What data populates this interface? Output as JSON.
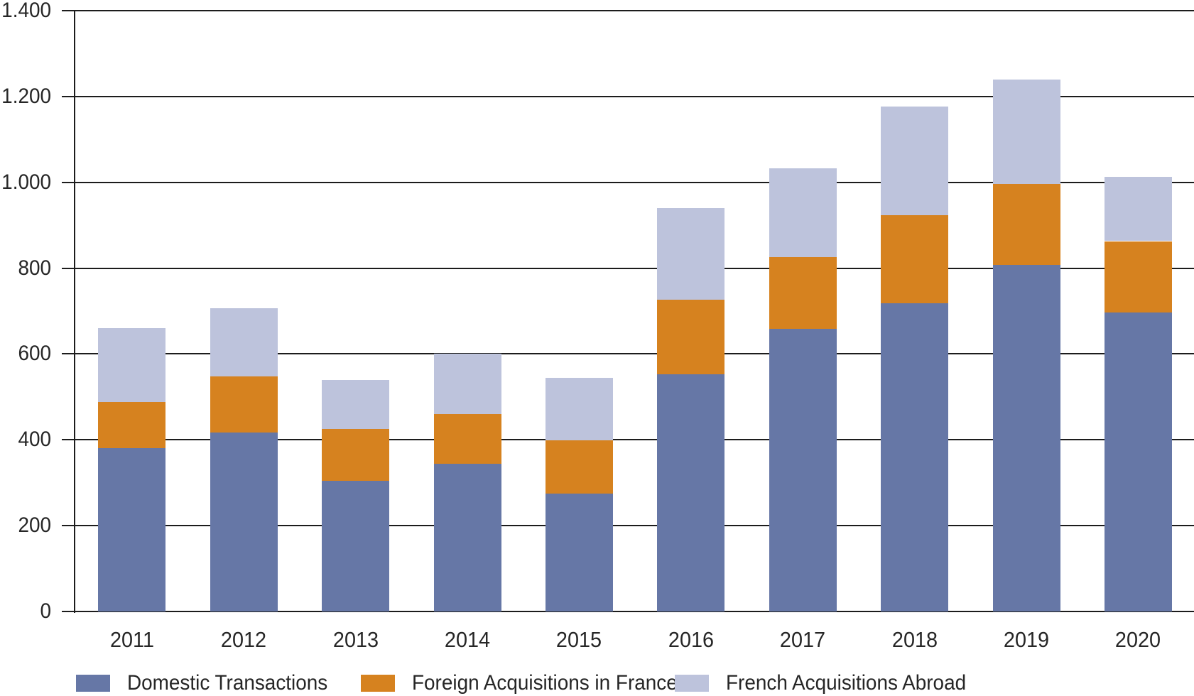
{
  "chart_data": {
    "type": "bar",
    "stacked": true,
    "title": "",
    "xlabel": "",
    "ylabel": "",
    "categories": [
      "2011",
      "2012",
      "2013",
      "2014",
      "2015",
      "2016",
      "2017",
      "2018",
      "2019",
      "2020"
    ],
    "series": [
      {
        "name": "Domestic Transactions",
        "color": "#6677a6",
        "values": [
          380,
          417,
          305,
          344,
          275,
          553,
          658,
          718,
          807,
          696
        ]
      },
      {
        "name": "Foreign Acquisitions in France",
        "color": "#d6821f",
        "values": [
          108,
          131,
          120,
          116,
          123,
          174,
          167,
          205,
          189,
          167
        ]
      },
      {
        "name": "French Acquisitions Abroad",
        "color": "#bdc3dc",
        "values": [
          172,
          158,
          115,
          140,
          147,
          213,
          207,
          253,
          243,
          149
        ]
      }
    ],
    "totals": [
      660,
      706,
      540,
      600,
      545,
      940,
      1032,
      1176,
      1239,
      1012
    ],
    "ylim": [
      0,
      1400
    ],
    "ytick_step": 200,
    "ytick_labels": [
      "0",
      "200",
      "400",
      "600",
      "800",
      "1.000",
      "1.200",
      "1.400"
    ],
    "grid": "horizontal",
    "gridline_color": "#1c1c1c",
    "legend_position": "bottom"
  }
}
